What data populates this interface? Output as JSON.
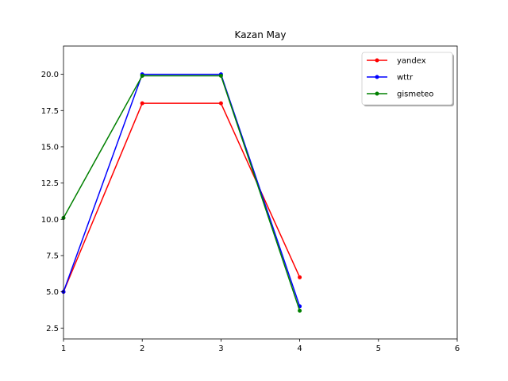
{
  "chart_data": {
    "type": "line",
    "title": "Kazan May",
    "xlabel": "",
    "ylabel": "",
    "xlim": [
      1,
      6
    ],
    "ylim": [
      1.75,
      21.95
    ],
    "x_ticks": [
      1,
      2,
      3,
      4,
      5,
      6
    ],
    "y_ticks": [
      2.5,
      5.0,
      7.5,
      10.0,
      12.5,
      15.0,
      17.5,
      20.0
    ],
    "x_tick_labels": [
      "1",
      "2",
      "3",
      "4",
      "5",
      "6"
    ],
    "y_tick_labels": [
      "2.5",
      "5.0",
      "7.5",
      "10.0",
      "12.5",
      "15.0",
      "17.5",
      "20.0"
    ],
    "grid": false,
    "legend_position": "top-right",
    "series": [
      {
        "name": "yandex",
        "color": "#ff0000",
        "x": [
          1,
          2,
          3,
          4
        ],
        "y": [
          5.0,
          18.0,
          18.0,
          6.0
        ]
      },
      {
        "name": "wttr",
        "color": "#0000ff",
        "x": [
          1,
          2,
          3,
          4
        ],
        "y": [
          5.0,
          20.0,
          20.0,
          4.0
        ]
      },
      {
        "name": "gismeteo",
        "color": "#008000",
        "x": [
          1,
          2,
          3,
          4
        ],
        "y": [
          10.1,
          19.9,
          19.9,
          3.7
        ]
      }
    ]
  }
}
